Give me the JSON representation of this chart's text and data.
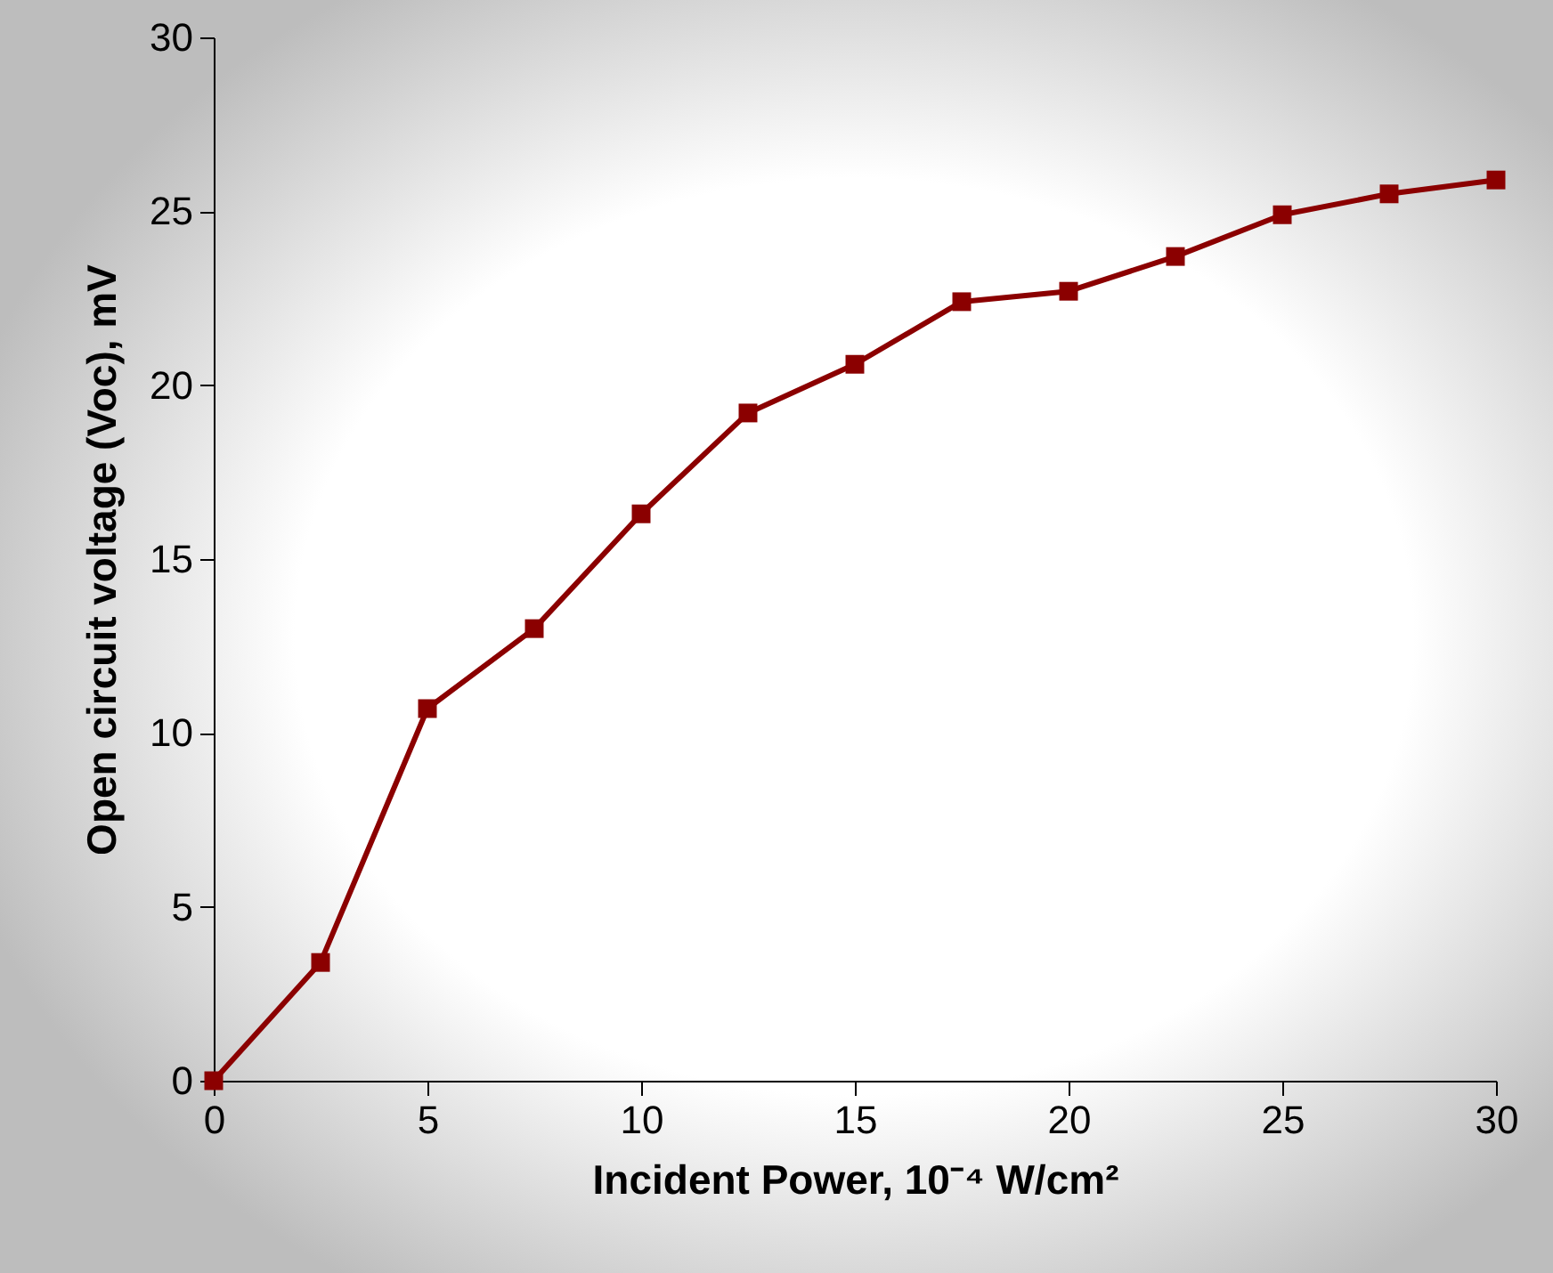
{
  "chart_data": {
    "type": "line",
    "xlabel": "Incident Power, 10⁻⁴ W/cm²",
    "ylabel": "Open circuit voltage (Voc), mV",
    "x": [
      0,
      2.5,
      5,
      7.5,
      10,
      12.5,
      15,
      17.5,
      20,
      22.5,
      25,
      27.5,
      30
    ],
    "series": [
      {
        "color": "#8b0000",
        "values": [
          0,
          3.4,
          10.7,
          13.0,
          16.3,
          19.2,
          20.6,
          22.4,
          22.7,
          23.7,
          24.9,
          25.5,
          25.9
        ]
      }
    ],
    "xlim": [
      0,
      30
    ],
    "xticks": [
      0,
      5,
      10,
      15,
      20,
      25,
      30
    ],
    "ylim": [
      0,
      30
    ],
    "yticks": [
      0,
      5,
      10,
      15,
      20,
      25,
      30
    ],
    "grid": false,
    "marker": "square",
    "line_style": "solid"
  }
}
